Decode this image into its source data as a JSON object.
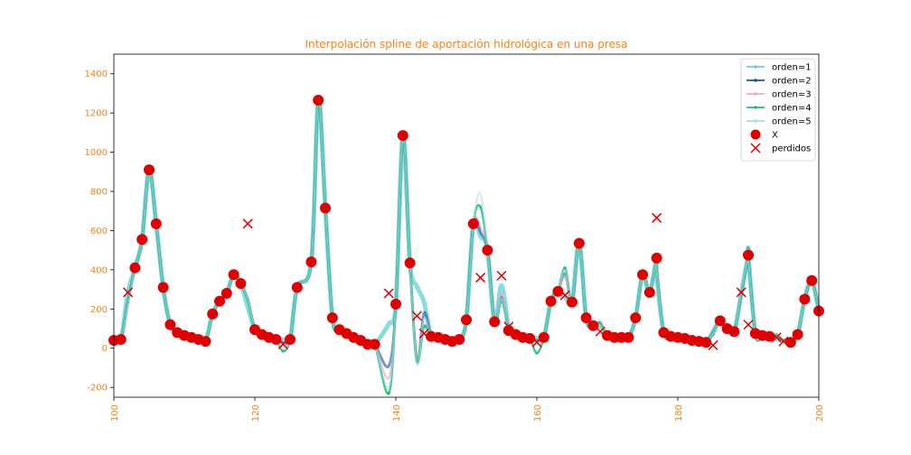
{
  "chart_data": {
    "type": "line",
    "title": "Interpolación spline de aportación hidrológica en una presa",
    "xlabel": "",
    "ylabel": "",
    "xlim": [
      100,
      200
    ],
    "ylim": [
      -250,
      1500
    ],
    "xticks": [
      100,
      120,
      140,
      160,
      180,
      200
    ],
    "yticks": [
      -200,
      0,
      200,
      400,
      600,
      800,
      1000,
      1200,
      1400
    ],
    "legend_position": "top-right",
    "observed": {
      "name": "X",
      "color": "#e00000",
      "points": [
        [
          100,
          40
        ],
        [
          101,
          45
        ],
        [
          103,
          410
        ],
        [
          104,
          555
        ],
        [
          105,
          910
        ],
        [
          106,
          635
        ],
        [
          107,
          310
        ],
        [
          108,
          120
        ],
        [
          109,
          80
        ],
        [
          110,
          65
        ],
        [
          111,
          55
        ],
        [
          112,
          45
        ],
        [
          113,
          35
        ],
        [
          114,
          175
        ],
        [
          115,
          240
        ],
        [
          116,
          280
        ],
        [
          117,
          375
        ],
        [
          118,
          330
        ],
        [
          120,
          95
        ],
        [
          121,
          70
        ],
        [
          122,
          55
        ],
        [
          123,
          45
        ],
        [
          125,
          45
        ],
        [
          126,
          310
        ],
        [
          128,
          440
        ],
        [
          129,
          1265
        ],
        [
          130,
          715
        ],
        [
          131,
          155
        ],
        [
          132,
          95
        ],
        [
          133,
          75
        ],
        [
          134,
          55
        ],
        [
          135,
          40
        ],
        [
          136,
          20
        ],
        [
          137,
          20
        ],
        [
          140,
          225
        ],
        [
          141,
          1085
        ],
        [
          142,
          435
        ],
        [
          145,
          60
        ],
        [
          146,
          55
        ],
        [
          147,
          45
        ],
        [
          148,
          35
        ],
        [
          149,
          45
        ],
        [
          150,
          145
        ],
        [
          151,
          635
        ],
        [
          153,
          500
        ],
        [
          154,
          135
        ],
        [
          156,
          90
        ],
        [
          157,
          70
        ],
        [
          158,
          55
        ],
        [
          159,
          50
        ],
        [
          161,
          55
        ],
        [
          162,
          240
        ],
        [
          163,
          290
        ],
        [
          165,
          235
        ],
        [
          166,
          535
        ],
        [
          167,
          155
        ],
        [
          168,
          115
        ],
        [
          170,
          65
        ],
        [
          171,
          55
        ],
        [
          172,
          55
        ],
        [
          173,
          55
        ],
        [
          174,
          155
        ],
        [
          175,
          375
        ],
        [
          176,
          285
        ],
        [
          177,
          460
        ],
        [
          178,
          80
        ],
        [
          179,
          60
        ],
        [
          180,
          55
        ],
        [
          181,
          50
        ],
        [
          182,
          40
        ],
        [
          183,
          35
        ],
        [
          184,
          30
        ],
        [
          186,
          140
        ],
        [
          187,
          100
        ],
        [
          188,
          85
        ],
        [
          190,
          475
        ],
        [
          191,
          75
        ],
        [
          192,
          65
        ],
        [
          193,
          60
        ],
        [
          196,
          30
        ],
        [
          197,
          70
        ],
        [
          198,
          250
        ],
        [
          199,
          345
        ],
        [
          200,
          190
        ]
      ]
    },
    "missing": {
      "name": "perdidos",
      "color": "#e00000",
      "points": [
        [
          102,
          285
        ],
        [
          119,
          635
        ],
        [
          124,
          20
        ],
        [
          139,
          280
        ],
        [
          143,
          165
        ],
        [
          144,
          75
        ],
        [
          152,
          360
        ],
        [
          155,
          370
        ],
        [
          156,
          110
        ],
        [
          160,
          30
        ],
        [
          164,
          270
        ],
        [
          169,
          85
        ],
        [
          177,
          665
        ],
        [
          185,
          15
        ],
        [
          189,
          285
        ],
        [
          190,
          120
        ],
        [
          194,
          55
        ],
        [
          195,
          35
        ]
      ]
    },
    "series": [
      {
        "name": "orden=1",
        "color": "#5fd3d3",
        "knot_points": [
          [
            102,
            285
          ],
          [
            119,
            210
          ],
          [
            124,
            45
          ],
          [
            139,
            125
          ],
          [
            143,
            315
          ],
          [
            144,
            235
          ],
          [
            152,
            570
          ],
          [
            155,
            320
          ],
          [
            156,
            112
          ],
          [
            160,
            52
          ],
          [
            164,
            263
          ],
          [
            169,
            110
          ],
          [
            177,
            373
          ],
          [
            185,
            85
          ],
          [
            189,
            280
          ],
          [
            190,
            475
          ],
          [
            194,
            45
          ],
          [
            195,
            37
          ]
        ]
      },
      {
        "name": "orden=2",
        "color": "#1f4ea8",
        "knot_points": [
          [
            102,
            240
          ],
          [
            119,
            250
          ],
          [
            124,
            30
          ],
          [
            139,
            -90
          ],
          [
            143,
            -70
          ],
          [
            144,
            180
          ],
          [
            152,
            590
          ],
          [
            155,
            260
          ],
          [
            156,
            115
          ],
          [
            160,
            40
          ],
          [
            164,
            380
          ],
          [
            169,
            130
          ],
          [
            177,
            400
          ],
          [
            185,
            80
          ],
          [
            189,
            280
          ],
          [
            190,
            470
          ],
          [
            194,
            60
          ],
          [
            195,
            40
          ]
        ]
      },
      {
        "name": "orden=3",
        "color": "#f4a6c0",
        "knot_points": [
          [
            102,
            230
          ],
          [
            119,
            250
          ],
          [
            124,
            20
          ],
          [
            139,
            -150
          ],
          [
            143,
            -40
          ],
          [
            144,
            120
          ],
          [
            152,
            620
          ],
          [
            155,
            280
          ],
          [
            156,
            112
          ],
          [
            160,
            30
          ],
          [
            164,
            360
          ],
          [
            169,
            120
          ],
          [
            177,
            400
          ],
          [
            185,
            75
          ],
          [
            189,
            290
          ],
          [
            190,
            470
          ],
          [
            194,
            65
          ],
          [
            195,
            38
          ]
        ]
      },
      {
        "name": "orden=4",
        "color": "#1dbf73",
        "knot_points": [
          [
            102,
            235
          ],
          [
            119,
            245
          ],
          [
            124,
            -15
          ],
          [
            139,
            -230
          ],
          [
            143,
            -60
          ],
          [
            144,
            110
          ],
          [
            152,
            720
          ],
          [
            155,
            240
          ],
          [
            156,
            110
          ],
          [
            160,
            -25
          ],
          [
            164,
            410
          ],
          [
            169,
            130
          ],
          [
            177,
            390
          ],
          [
            185,
            70
          ],
          [
            189,
            270
          ],
          [
            190,
            465
          ],
          [
            194,
            70
          ],
          [
            195,
            40
          ]
        ]
      },
      {
        "name": "orden=5",
        "color": "#a8dbf0",
        "knot_points": [
          [
            102,
            230
          ],
          [
            119,
            250
          ],
          [
            124,
            0
          ],
          [
            139,
            -200
          ],
          [
            143,
            -80
          ],
          [
            144,
            150
          ],
          [
            152,
            790
          ],
          [
            155,
            250
          ],
          [
            156,
            112
          ],
          [
            160,
            20
          ],
          [
            164,
            400
          ],
          [
            169,
            140
          ],
          [
            177,
            395
          ],
          [
            185,
            75
          ],
          [
            189,
            285
          ],
          [
            190,
            460
          ],
          [
            194,
            75
          ],
          [
            195,
            40
          ]
        ]
      }
    ]
  }
}
